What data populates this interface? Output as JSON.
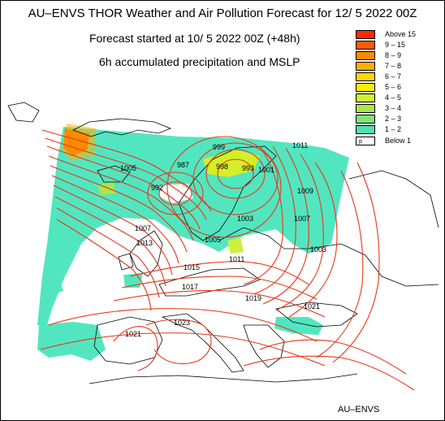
{
  "title": "AU–ENVS THOR Weather and Air Pollution Forecast for 12/ 5 2022  00Z",
  "forecast_start": "Forecast started at 10/ 5 2022  00Z (+48h)",
  "variable": "6h accumulated precipitation and MSLP",
  "brand": "AU–ENVS",
  "legend": {
    "items": [
      {
        "label": "Above   15",
        "color": "#ff2a00"
      },
      {
        "label": "9 – 15",
        "color": "#ff5a00"
      },
      {
        "label": "8 – 9",
        "color": "#ff8a00"
      },
      {
        "label": "7 – 8",
        "color": "#ffb000"
      },
      {
        "label": "6 – 7",
        "color": "#ffd800"
      },
      {
        "label": "5 – 6",
        "color": "#f6f000"
      },
      {
        "label": "4 – 5",
        "color": "#cdf03a"
      },
      {
        "label": "3 – 4",
        "color": "#a8e84c"
      },
      {
        "label": "2 – 3",
        "color": "#7ee47a"
      },
      {
        "label": "1 – 2",
        "color": "#4ee2b0"
      },
      {
        "label": "Below    1",
        "color": "#ffffff",
        "flag": "p"
      }
    ]
  },
  "isobar_labels": [
    "1005",
    "987",
    "992",
    "999",
    "1001",
    "998",
    "1011",
    "1009",
    "993",
    "1007",
    "1003",
    "1005",
    "1011",
    "1003",
    "1007",
    "1013",
    "1015",
    "1017",
    "1019",
    "1021",
    "1021",
    "1023"
  ],
  "colors": {
    "isobar": "#e8361a",
    "coast": "#000000",
    "precip_light": "#52e6c0"
  }
}
